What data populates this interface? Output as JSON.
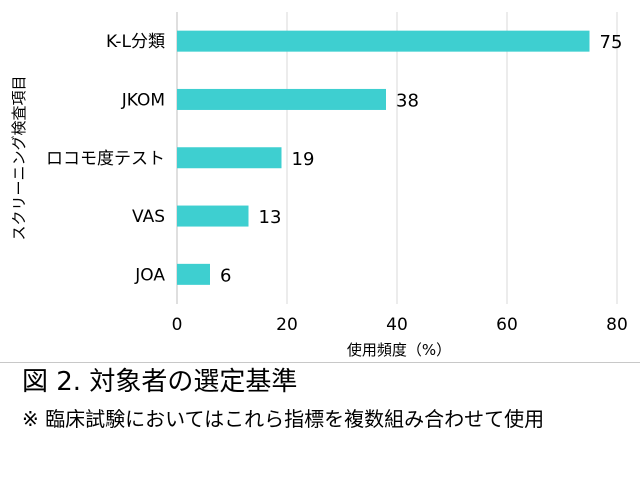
{
  "chart_data": {
    "type": "bar",
    "orientation": "horizontal",
    "categories": [
      "K-L分類",
      "JKOM",
      "ロコモ度テスト",
      "VAS",
      "JOA"
    ],
    "values": [
      75,
      38,
      19,
      13,
      6
    ],
    "data_labels": [
      "75",
      "38",
      "19",
      "13",
      "6"
    ],
    "title": "",
    "xlabel": "使用頻度（%）",
    "ylabel": "スクリーニング検査項目",
    "xlim": [
      0,
      80
    ],
    "xticks": [
      "0",
      "20",
      "40",
      "60",
      "80"
    ],
    "bar_color": "#3ecfd0",
    "grid": true,
    "legend": "none"
  },
  "caption": {
    "title": "図 2.  対象者の選定基準",
    "note": "※  臨床試験においてはこれら指標を複数組み合わせて使用"
  }
}
